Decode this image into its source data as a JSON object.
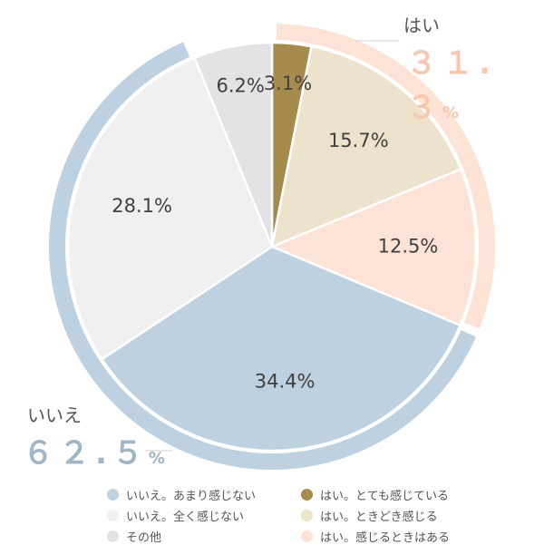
{
  "chart_data": {
    "type": "pie",
    "slices": [
      {
        "name": "はい。とても感じている",
        "value": 3.1,
        "label": "3.1%",
        "color": "#A68B4F"
      },
      {
        "name": "はい。ときどき感じる",
        "value": 15.7,
        "label": "15.7%",
        "color": "#EDE2CB"
      },
      {
        "name": "はい。感じるときはある",
        "value": 12.5,
        "label": "12.5%",
        "color": "#FCE3D6"
      },
      {
        "name": "いいえ。あまり感じない",
        "value": 34.4,
        "label": "34.4%",
        "color": "#BDD1E0"
      },
      {
        "name": "いいえ。全く感じない",
        "value": 28.1,
        "label": "28.1%",
        "color": "#F0F0F0"
      },
      {
        "name": "その他",
        "value": 6.2,
        "label": "6.2%",
        "color": "#E3E3E3"
      }
    ],
    "groups": [
      {
        "name": "はい",
        "total": "３１.３",
        "unit": "%",
        "color": "#F7C7B0",
        "ring_color": "#FCE3D6",
        "slices": [
          0,
          1,
          2
        ]
      },
      {
        "name": "いいえ",
        "total": "６２.５",
        "unit": "%",
        "color": "#9FB6C7",
        "ring_color": "#BDD1E0",
        "slices": [
          3,
          4
        ]
      }
    ],
    "legend": [
      {
        "label": "いいえ。あまり感じない",
        "color": "#BDD1E0"
      },
      {
        "label": "はい。とても感じている",
        "color": "#A68B4F"
      },
      {
        "label": "いいえ。全く感じない",
        "color": "#F0F0F0"
      },
      {
        "label": "はい。ときどき感じる",
        "color": "#EDE2CB"
      },
      {
        "label": "その他",
        "color": "#E3E3E3"
      },
      {
        "label": "はい。感じるときはある",
        "color": "#FCE3D6"
      }
    ]
  }
}
